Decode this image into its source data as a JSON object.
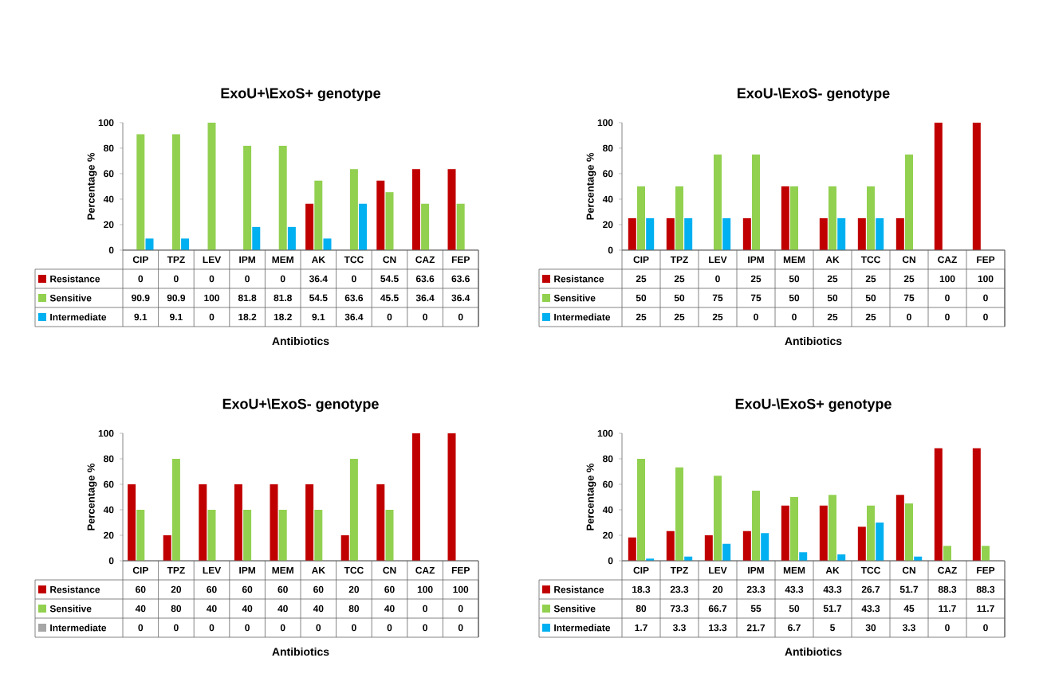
{
  "chart_data": [
    {
      "type": "bar",
      "legend": "bottom left",
      "title": "ExoU+\\ExoS+ genotype",
      "xlabel": "Antibiotics",
      "ylabel": "Percentage %",
      "categories": [
        "CIP",
        "TPZ",
        "LEV",
        "IPM",
        "MEM",
        "AK",
        "TCC",
        "CN",
        "CAZ",
        "FEP"
      ],
      "ylim": [
        0,
        100
      ],
      "yticks": [
        0,
        20,
        40,
        60,
        80,
        100
      ],
      "data_labels": true,
      "series": [
        {
          "name": "Resistance",
          "color": "#c00000",
          "values": [
            0,
            0,
            0,
            0,
            0,
            36.4,
            0,
            54.5,
            63.6,
            63.6
          ]
        },
        {
          "name": "Sensitive",
          "color": "#92d050",
          "values": [
            90.9,
            90.9,
            100,
            81.8,
            81.8,
            54.5,
            63.6,
            45.5,
            36.4,
            36.4
          ]
        },
        {
          "name": "Intermediate",
          "color": "#00b0f0",
          "values": [
            9.1,
            9.1,
            0,
            18.2,
            18.2,
            9.1,
            36.4,
            0,
            0,
            0
          ]
        }
      ]
    },
    {
      "type": "bar",
      "legend": "bottom left",
      "title": "ExoU-\\ExoS- genotype",
      "xlabel": "Antibiotics",
      "ylabel": "Percentage %",
      "categories": [
        "CIP",
        "TPZ",
        "LEV",
        "IPM",
        "MEM",
        "AK",
        "TCC",
        "CN",
        "CAZ",
        "FEP"
      ],
      "ylim": [
        0,
        100
      ],
      "yticks": [
        0,
        20,
        40,
        60,
        80,
        100
      ],
      "data_labels": true,
      "series": [
        {
          "name": "Resistance",
          "color": "#c00000",
          "values": [
            25,
            25,
            0,
            25,
            50,
            25,
            25,
            25,
            100,
            100
          ]
        },
        {
          "name": "Sensitive",
          "color": "#92d050",
          "values": [
            50,
            50,
            75,
            75,
            50,
            50,
            50,
            75,
            0,
            0
          ]
        },
        {
          "name": "Intermediate",
          "color": "#00b0f0",
          "values": [
            25,
            25,
            25,
            0,
            0,
            25,
            25,
            0,
            0,
            0
          ]
        }
      ]
    },
    {
      "type": "bar",
      "legend": "bottom left",
      "title": "ExoU+\\ExoS- genotype",
      "xlabel": "Antibiotics",
      "ylabel": "Percentage %",
      "categories": [
        "CIP",
        "TPZ",
        "LEV",
        "IPM",
        "MEM",
        "AK",
        "TCC",
        "CN",
        "CAZ",
        "FEP"
      ],
      "ylim": [
        0,
        100
      ],
      "yticks": [
        0,
        20,
        40,
        60,
        80,
        100
      ],
      "data_labels": true,
      "series": [
        {
          "name": "Resistance",
          "color": "#c00000",
          "values": [
            60,
            20,
            60,
            60,
            60,
            60,
            20,
            60,
            100,
            100
          ]
        },
        {
          "name": "Sensitive",
          "color": "#92d050",
          "values": [
            40,
            80,
            40,
            40,
            40,
            40,
            80,
            40,
            0,
            0
          ]
        },
        {
          "name": "Intermediate",
          "color": "#a6a6a6",
          "values": [
            0,
            0,
            0,
            0,
            0,
            0,
            0,
            0,
            0,
            0
          ]
        }
      ]
    },
    {
      "type": "bar",
      "legend": "bottom left",
      "title": "ExoU-\\ExoS+ genotype",
      "xlabel": "Antibiotics",
      "ylabel": "Percentage %",
      "categories": [
        "CIP",
        "TPZ",
        "LEV",
        "IPM",
        "MEM",
        "AK",
        "TCC",
        "CN",
        "CAZ",
        "FEP"
      ],
      "ylim": [
        0,
        100
      ],
      "yticks": [
        0,
        20,
        40,
        60,
        80,
        100
      ],
      "data_labels": true,
      "series": [
        {
          "name": "Resistance",
          "color": "#c00000",
          "values": [
            18.3,
            23.3,
            20,
            23.3,
            43.3,
            43.3,
            26.7,
            51.7,
            88.3,
            88.3
          ]
        },
        {
          "name": "Sensitive",
          "color": "#92d050",
          "values": [
            80,
            73.3,
            66.7,
            55,
            50,
            51.7,
            43.3,
            45,
            11.7,
            11.7
          ]
        },
        {
          "name": "Intermediate",
          "color": "#00b0f0",
          "values": [
            1.7,
            3.3,
            13.3,
            21.7,
            6.7,
            5,
            30,
            3.3,
            0,
            0
          ]
        }
      ]
    }
  ]
}
